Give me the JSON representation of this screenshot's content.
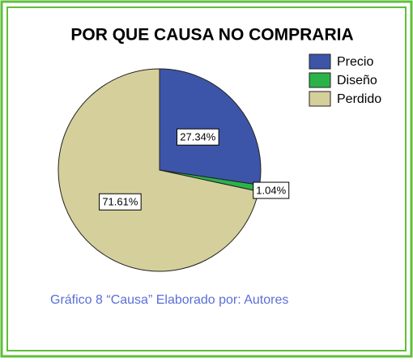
{
  "chart_data": {
    "type": "pie",
    "title": "POR QUE CAUSA NO COMPRARIA",
    "categories": [
      "Precio",
      "Diseño",
      "Perdido"
    ],
    "values": [
      27.34,
      1.04,
      71.61
    ],
    "value_labels": [
      "27.34%",
      "1.04%",
      "71.61%"
    ],
    "colors": [
      "#3d55a8",
      "#2bb34a",
      "#d5d09b"
    ],
    "legend": "upper right",
    "annotations": [
      "Gráfico 8 “Causa” Elaborado  por: Autores"
    ]
  }
}
